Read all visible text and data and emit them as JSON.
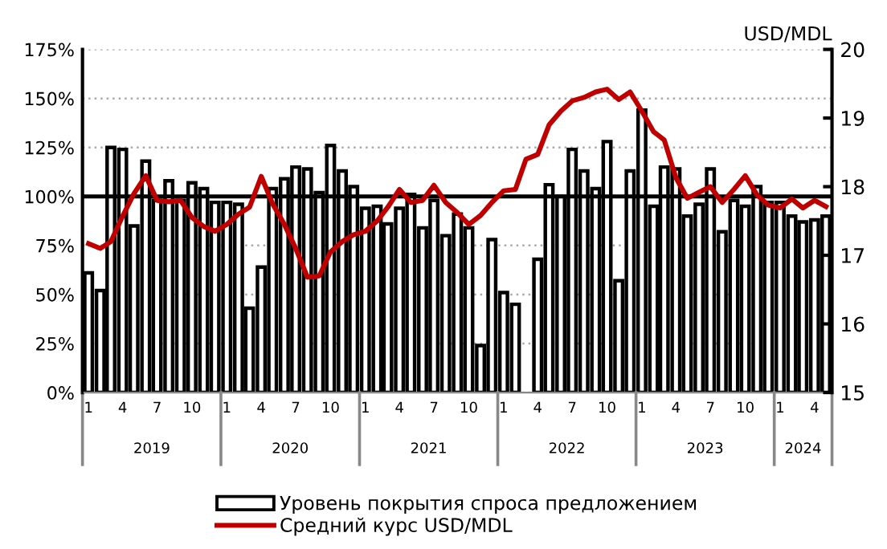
{
  "chart_data": {
    "type": "bar",
    "x": [
      "2019-01",
      "2019-02",
      "2019-03",
      "2019-04",
      "2019-05",
      "2019-06",
      "2019-07",
      "2019-08",
      "2019-09",
      "2019-10",
      "2019-11",
      "2019-12",
      "2020-01",
      "2020-02",
      "2020-03",
      "2020-04",
      "2020-05",
      "2020-06",
      "2020-07",
      "2020-08",
      "2020-09",
      "2020-10",
      "2020-11",
      "2020-12",
      "2021-01",
      "2021-02",
      "2021-03",
      "2021-04",
      "2021-05",
      "2021-06",
      "2021-07",
      "2021-08",
      "2021-09",
      "2021-10",
      "2021-11",
      "2021-12",
      "2022-01",
      "2022-02",
      "2022-03",
      "2022-04",
      "2022-05",
      "2022-06",
      "2022-07",
      "2022-08",
      "2022-09",
      "2022-10",
      "2022-11",
      "2022-12",
      "2023-01",
      "2023-02",
      "2023-03",
      "2023-04",
      "2023-05",
      "2023-06",
      "2023-07",
      "2023-08",
      "2023-09",
      "2023-10",
      "2023-11",
      "2023-12",
      "2024-01",
      "2024-02",
      "2024-03",
      "2024-04",
      "2024-05"
    ],
    "xlim": [
      "2018-12-16",
      "2024-05-17"
    ],
    "xticks": [
      {
        "value": "2019-01",
        "label": "1"
      },
      {
        "value": "2019-04",
        "label": "4"
      },
      {
        "value": "2019-07",
        "label": "7"
      },
      {
        "value": "2019-10",
        "label": "10"
      },
      {
        "value": "2020-01",
        "label": "1"
      },
      {
        "value": "2020-04",
        "label": "4"
      },
      {
        "value": "2020-07",
        "label": "7"
      },
      {
        "value": "2020-10",
        "label": "10"
      },
      {
        "value": "2021-01",
        "label": "1"
      },
      {
        "value": "2021-04",
        "label": "4"
      },
      {
        "value": "2021-07",
        "label": "7"
      },
      {
        "value": "2021-10",
        "label": "10"
      },
      {
        "value": "2022-01",
        "label": "1"
      },
      {
        "value": "2022-04",
        "label": "4"
      },
      {
        "value": "2022-07",
        "label": "7"
      },
      {
        "value": "2022-10",
        "label": "10"
      },
      {
        "value": "2023-01",
        "label": "1"
      },
      {
        "value": "2023-04",
        "label": "4"
      },
      {
        "value": "2023-07",
        "label": "7"
      },
      {
        "value": "2023-10",
        "label": "10"
      },
      {
        "value": "2024-01",
        "label": "1"
      },
      {
        "value": "2024-04",
        "label": "4"
      }
    ],
    "series": [
      {
        "name": "Уровень покрытия спроса предложением",
        "color": "#ffffff",
        "values": [
          61,
          52,
          125,
          124,
          85,
          118,
          98,
          108,
          98,
          107,
          104,
          97,
          97,
          96,
          43,
          64,
          104,
          109,
          115,
          114,
          102,
          126,
          113,
          105,
          94,
          95,
          86,
          94,
          101,
          84,
          98,
          80,
          91,
          84,
          24,
          78,
          51,
          45,
          null,
          68,
          106,
          100,
          124,
          113,
          104,
          128,
          57,
          113,
          144,
          95,
          115,
          114,
          90,
          96,
          114,
          82,
          98,
          95,
          105,
          97,
          97,
          90,
          87,
          88,
          90
        ]
      },
      {
        "name": "Средний курс USD/MDL",
        "type": "line",
        "axis": "y2",
        "color": "#c00000",
        "values": [
          17.17,
          17.1,
          17.2,
          17.57,
          17.9,
          18.16,
          17.8,
          17.78,
          17.8,
          17.55,
          17.42,
          17.35,
          17.45,
          17.6,
          17.7,
          18.15,
          17.75,
          17.45,
          17.1,
          16.68,
          16.7,
          17.05,
          17.2,
          17.3,
          17.35,
          17.5,
          17.7,
          17.96,
          17.77,
          17.8,
          18.02,
          17.77,
          17.62,
          17.45,
          17.58,
          17.77,
          17.94,
          17.96,
          18.4,
          18.47,
          18.9,
          19.1,
          19.25,
          19.3,
          19.38,
          19.42,
          19.27,
          19.38,
          19.1,
          18.8,
          18.68,
          18.13,
          17.83,
          17.92,
          18.0,
          17.77,
          17.96,
          18.16,
          17.88,
          17.73,
          17.69,
          17.82,
          17.69,
          17.8,
          17.71
        ]
      }
    ],
    "ylim": [
      0,
      175
    ],
    "yticks": [
      {
        "value": 0,
        "label": "0%"
      },
      {
        "value": 25,
        "label": "25%"
      },
      {
        "value": 50,
        "label": "50%"
      },
      {
        "value": 75,
        "label": "75%"
      },
      {
        "value": 100,
        "label": "100%"
      },
      {
        "value": 125,
        "label": "125%"
      },
      {
        "value": 150,
        "label": "150%"
      },
      {
        "value": 175,
        "label": "175%"
      }
    ],
    "y2lim": [
      15,
      20
    ],
    "y2ticks": [
      15,
      16,
      17,
      18,
      19,
      20
    ],
    "y2label": "USD/MDL",
    "ref_lines": [
      {
        "axis": "y",
        "value": 100,
        "color": "#000000",
        "line_style": "solid"
      }
    ],
    "annotations": [
      "2019",
      "2020",
      "2021",
      "2022",
      "2023",
      "2024"
    ],
    "grid": "y",
    "legend": "bottom",
    "marker": "none",
    "line_style": "solid"
  }
}
